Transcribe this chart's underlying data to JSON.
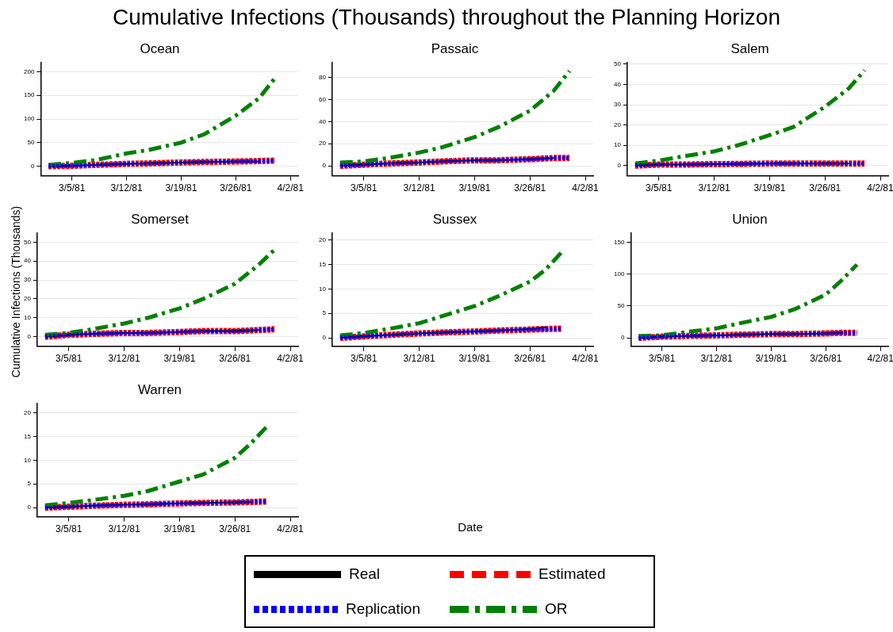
{
  "chart_data": [
    {
      "type": "line",
      "title": "Ocean",
      "annotations": [
        "Cumulative Infections (Thousands) throughout the Planning Horizon"
      ],
      "legend": "bottom",
      "grid": "y",
      "marker": "none",
      "x": [
        "1981-03-02",
        "1981-03-05",
        "1981-03-08",
        "1981-03-12",
        "1981-03-15",
        "1981-03-19",
        "1981-03-22",
        "1981-03-26",
        "1981-03-29",
        "1981-03-31"
      ],
      "xlim": [
        "1981-03-01",
        "1981-04-03"
      ],
      "xticks": [
        {
          "value": "1981-03-05",
          "label": "3/5/81"
        },
        {
          "value": "1981-03-12",
          "label": "3/12/81"
        },
        {
          "value": "1981-03-19",
          "label": "3/19/81"
        },
        {
          "value": "1981-03-26",
          "label": "3/26/81"
        },
        {
          "value": "1981-04-02",
          "label": "4/2/81"
        }
      ],
      "ylim": [
        -20,
        220
      ],
      "yticks": [
        0,
        50,
        100,
        150,
        200
      ],
      "series": [
        {
          "name": "Real",
          "color": "#000000",
          "line_style": "solid",
          "values": [
            0,
            1,
            3,
            5,
            6,
            8,
            9,
            10,
            10,
            null
          ]
        },
        {
          "name": "Estimated",
          "color": "#ff0000",
          "line_style": "dashed",
          "values": [
            0,
            1,
            3,
            5,
            6,
            8,
            9,
            10,
            11,
            12
          ]
        },
        {
          "name": "Replication",
          "color": "#0000ff",
          "line_style": "dotted",
          "values": [
            0,
            1,
            3,
            5,
            6,
            8,
            9,
            10,
            11,
            12
          ]
        },
        {
          "name": "OR",
          "color": "#008000",
          "line_style": "dashdot",
          "values": [
            3,
            7,
            13,
            27,
            35,
            50,
            68,
            107,
            144,
            186
          ]
        }
      ]
    },
    {
      "type": "line",
      "title": "Passaic",
      "grid": "y",
      "marker": "none",
      "x": [
        "1981-03-02",
        "1981-03-05",
        "1981-03-08",
        "1981-03-12",
        "1981-03-15",
        "1981-03-19",
        "1981-03-22",
        "1981-03-26",
        "1981-03-29",
        "1981-03-31"
      ],
      "xlim": [
        "1981-03-01",
        "1981-04-03"
      ],
      "xticks": [
        {
          "value": "1981-03-05",
          "label": "3/5/81"
        },
        {
          "value": "1981-03-12",
          "label": "3/12/81"
        },
        {
          "value": "1981-03-19",
          "label": "3/19/81"
        },
        {
          "value": "1981-03-26",
          "label": "3/26/81"
        },
        {
          "value": "1981-04-02",
          "label": "4/2/81"
        }
      ],
      "ylim": [
        -9,
        94
      ],
      "yticks": [
        0,
        20,
        40,
        60,
        80
      ],
      "series": [
        {
          "color": "#000000",
          "line_style": "solid",
          "values": [
            0,
            1,
            2,
            3,
            4,
            5,
            5,
            6,
            7,
            null
          ]
        },
        {
          "color": "#ff0000",
          "line_style": "dashed",
          "values": [
            0,
            1,
            2,
            3,
            4,
            5,
            5,
            6,
            7,
            7
          ]
        },
        {
          "color": "#0000ff",
          "line_style": "dotted",
          "values": [
            0,
            1,
            2,
            3,
            4,
            5,
            5,
            6,
            7,
            7
          ]
        },
        {
          "color": "#008000",
          "line_style": "dashdot",
          "values": [
            3,
            4,
            7,
            12,
            17,
            26,
            35,
            50,
            68,
            86
          ]
        }
      ]
    },
    {
      "type": "line",
      "title": "Salem",
      "grid": "y",
      "marker": "none",
      "x": [
        "1981-03-02",
        "1981-03-05",
        "1981-03-08",
        "1981-03-12",
        "1981-03-15",
        "1981-03-19",
        "1981-03-22",
        "1981-03-26",
        "1981-03-29",
        "1981-03-31"
      ],
      "xlim": [
        "1981-03-01",
        "1981-04-03"
      ],
      "xticks": [
        {
          "value": "1981-03-05",
          "label": "3/5/81"
        },
        {
          "value": "1981-03-12",
          "label": "3/12/81"
        },
        {
          "value": "1981-03-19",
          "label": "3/19/81"
        },
        {
          "value": "1981-03-26",
          "label": "3/26/81"
        },
        {
          "value": "1981-04-02",
          "label": "4/2/81"
        }
      ],
      "ylim": [
        -5,
        51
      ],
      "yticks": [
        0,
        10,
        20,
        30,
        40,
        50
      ],
      "series": [
        {
          "color": "#000000",
          "line_style": "solid",
          "values": [
            0,
            0.5,
            0.5,
            0.7,
            0.8,
            1,
            1,
            1,
            1,
            null
          ]
        },
        {
          "color": "#ff0000",
          "line_style": "dashed",
          "values": [
            0,
            0.5,
            0.5,
            0.7,
            0.8,
            1,
            1,
            1,
            1,
            1
          ]
        },
        {
          "color": "#0000ff",
          "line_style": "dotted",
          "values": [
            0,
            0.5,
            0.5,
            0.7,
            0.8,
            1,
            1,
            1,
            1,
            1
          ]
        },
        {
          "color": "#008000",
          "line_style": "dashdot",
          "values": [
            1,
            2.5,
            4.5,
            7,
            10,
            15,
            19,
            29,
            38,
            47
          ]
        }
      ]
    },
    {
      "type": "line",
      "title": "Somerset",
      "ylabel": "Cumulative Infections (Thousands)",
      "grid": "y",
      "marker": "none",
      "x": [
        "1981-03-02",
        "1981-03-05",
        "1981-03-08",
        "1981-03-12",
        "1981-03-15",
        "1981-03-19",
        "1981-03-22",
        "1981-03-26",
        "1981-03-29",
        "1981-03-31"
      ],
      "xlim": [
        "1981-03-01",
        "1981-04-03"
      ],
      "xticks": [
        {
          "value": "1981-03-05",
          "label": "3/5/81"
        },
        {
          "value": "1981-03-12",
          "label": "3/12/81"
        },
        {
          "value": "1981-03-19",
          "label": "3/19/81"
        },
        {
          "value": "1981-03-26",
          "label": "3/26/81"
        },
        {
          "value": "1981-04-02",
          "label": "4/2/81"
        }
      ],
      "ylim": [
        -5,
        55
      ],
      "yticks": [
        0,
        10,
        20,
        30,
        40,
        50
      ],
      "series": [
        {
          "color": "#000000",
          "line_style": "solid",
          "values": [
            0,
            1,
            1.5,
            2,
            2,
            2.5,
            3,
            3,
            3.5,
            null
          ]
        },
        {
          "color": "#ff0000",
          "line_style": "dashed",
          "values": [
            0,
            1,
            1.5,
            2,
            2,
            2.5,
            3,
            3,
            3.5,
            4
          ]
        },
        {
          "color": "#0000ff",
          "line_style": "dotted",
          "values": [
            0,
            1,
            1.5,
            2,
            2,
            2.5,
            3,
            3,
            3.5,
            4
          ]
        },
        {
          "color": "#008000",
          "line_style": "dashdot",
          "values": [
            1,
            2,
            4,
            7,
            10,
            15,
            20,
            28,
            38,
            46
          ]
        }
      ]
    },
    {
      "type": "line",
      "title": "Sussex",
      "xlabel": "Date",
      "grid": "y",
      "marker": "none",
      "x": [
        "1981-03-02",
        "1981-03-05",
        "1981-03-08",
        "1981-03-12",
        "1981-03-15",
        "1981-03-19",
        "1981-03-22",
        "1981-03-26",
        "1981-03-28",
        "1981-03-30"
      ],
      "xlim": [
        "1981-03-01",
        "1981-04-03"
      ],
      "xticks": [
        {
          "value": "1981-03-05",
          "label": "3/5/81"
        },
        {
          "value": "1981-03-12",
          "label": "3/12/81"
        },
        {
          "value": "1981-03-19",
          "label": "3/19/81"
        },
        {
          "value": "1981-03-26",
          "label": "3/26/81"
        },
        {
          "value": "1981-04-02",
          "label": "4/2/81"
        }
      ],
      "ylim": [
        -1.7,
        21.5
      ],
      "yticks": [
        0,
        5,
        10,
        15,
        20
      ],
      "series": [
        {
          "color": "#000000",
          "line_style": "solid",
          "values": [
            0,
            0.3,
            0.6,
            0.9,
            1.1,
            1.3,
            1.5,
            1.8,
            2.2,
            null
          ]
        },
        {
          "color": "#ff0000",
          "line_style": "dashed",
          "values": [
            0,
            0.3,
            0.6,
            0.9,
            1.1,
            1.3,
            1.5,
            1.7,
            1.8,
            1.9
          ]
        },
        {
          "color": "#0000ff",
          "line_style": "dotted",
          "values": [
            0,
            0.3,
            0.6,
            0.9,
            1.1,
            1.3,
            1.5,
            1.7,
            1.8,
            1.9
          ]
        },
        {
          "color": "#008000",
          "line_style": "dashdot",
          "values": [
            0.5,
            1,
            1.8,
            3,
            4.5,
            6.5,
            8.5,
            11.5,
            14,
            17.5
          ]
        }
      ]
    },
    {
      "type": "line",
      "title": "Union",
      "grid": "y",
      "marker": "none",
      "x": [
        "1981-03-02",
        "1981-03-05",
        "1981-03-08",
        "1981-03-12",
        "1981-03-15",
        "1981-03-19",
        "1981-03-22",
        "1981-03-26",
        "1981-03-28",
        "1981-03-30"
      ],
      "xlim": [
        "1981-03-01",
        "1981-04-03"
      ],
      "xticks": [
        {
          "value": "1981-03-05",
          "label": "3/5/81"
        },
        {
          "value": "1981-03-12",
          "label": "3/12/81"
        },
        {
          "value": "1981-03-19",
          "label": "3/19/81"
        },
        {
          "value": "1981-03-26",
          "label": "3/26/81"
        },
        {
          "value": "1981-04-02",
          "label": "4/2/81"
        }
      ],
      "ylim": [
        -13,
        165
      ],
      "yticks": [
        0,
        50,
        100,
        150
      ],
      "series": [
        {
          "color": "#000000",
          "line_style": "solid",
          "values": [
            0,
            2,
            3,
            4,
            5,
            6,
            6,
            7,
            8,
            null
          ]
        },
        {
          "color": "#ff0000",
          "line_style": "dashed",
          "values": [
            0,
            2,
            3,
            4,
            5,
            6,
            6,
            7,
            8,
            8
          ]
        },
        {
          "color": "#0000ff",
          "line_style": "dotted",
          "values": [
            0,
            2,
            3,
            4,
            5,
            6,
            6,
            7,
            8,
            8
          ]
        },
        {
          "color": "#008000",
          "line_style": "dashdot",
          "values": [
            3,
            4,
            9,
            15,
            23,
            33,
            45,
            68,
            90,
            115
          ]
        }
      ]
    },
    {
      "type": "line",
      "title": "Warren",
      "grid": "y",
      "marker": "none",
      "x": [
        "1981-03-02",
        "1981-03-05",
        "1981-03-08",
        "1981-03-12",
        "1981-03-15",
        "1981-03-19",
        "1981-03-22",
        "1981-03-26",
        "1981-03-28",
        "1981-03-30"
      ],
      "xlim": [
        "1981-03-01",
        "1981-04-03"
      ],
      "xticks": [
        {
          "value": "1981-03-05",
          "label": "3/5/81"
        },
        {
          "value": "1981-03-12",
          "label": "3/12/81"
        },
        {
          "value": "1981-03-19",
          "label": "3/19/81"
        },
        {
          "value": "1981-03-26",
          "label": "3/26/81"
        },
        {
          "value": "1981-04-02",
          "label": "4/2/81"
        }
      ],
      "ylim": [
        -1.9,
        22
      ],
      "yticks": [
        0,
        5,
        10,
        15,
        20
      ],
      "series": [
        {
          "color": "#000000",
          "line_style": "solid",
          "values": [
            0,
            0.2,
            0.4,
            0.6,
            0.7,
            0.9,
            1,
            1.1,
            1.2,
            null
          ]
        },
        {
          "color": "#ff0000",
          "line_style": "dashed",
          "values": [
            0,
            0.2,
            0.4,
            0.6,
            0.7,
            0.9,
            1,
            1.1,
            1.2,
            1.3
          ]
        },
        {
          "color": "#0000ff",
          "line_style": "dotted",
          "values": [
            0,
            0.2,
            0.4,
            0.6,
            0.7,
            0.9,
            1,
            1.1,
            1.2,
            1.3
          ]
        },
        {
          "color": "#008000",
          "line_style": "dashdot",
          "values": [
            0.5,
            1,
            1.6,
            2.5,
            3.5,
            5.5,
            7,
            10.5,
            13.5,
            17
          ]
        }
      ]
    }
  ]
}
